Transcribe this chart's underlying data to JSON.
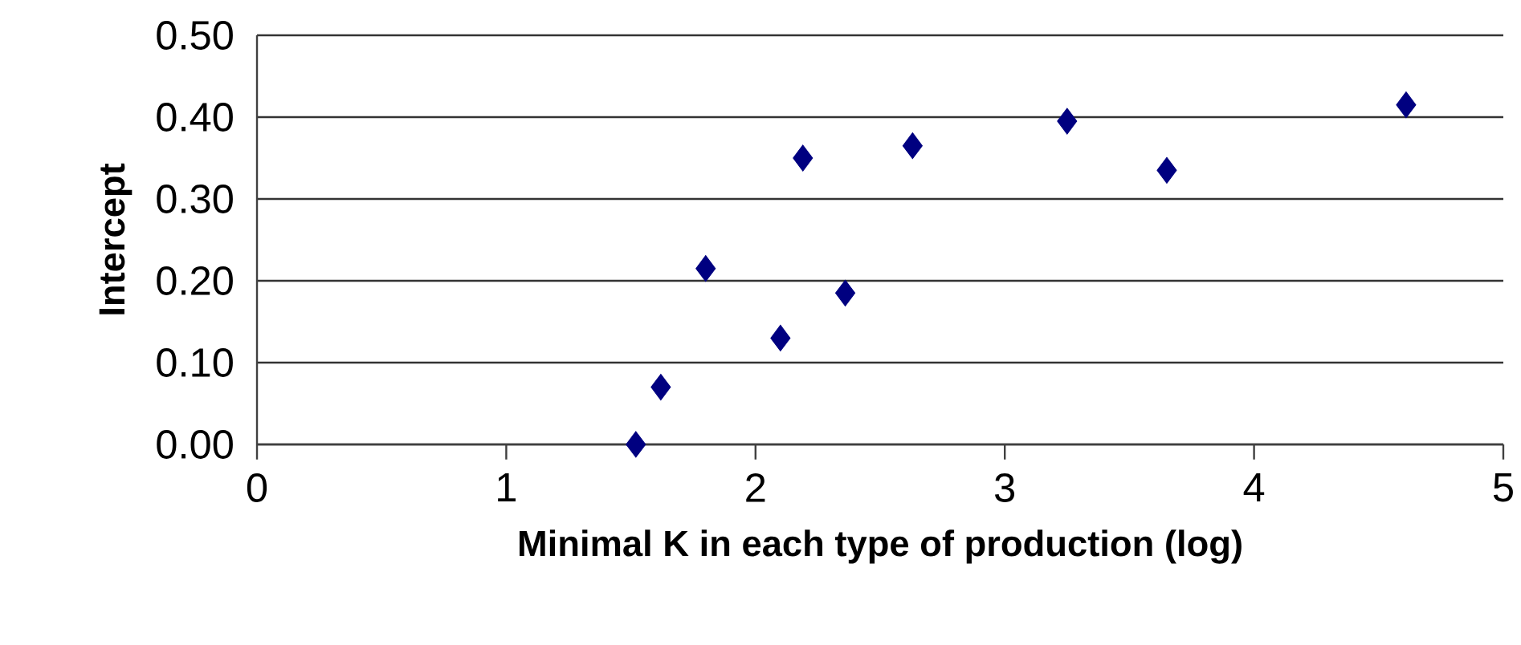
{
  "chart_data": {
    "type": "scatter",
    "xlabel": "Minimal K in each type of production (log)",
    "ylabel": "Intercept",
    "x": [
      1.52,
      1.62,
      1.8,
      2.1,
      2.19,
      2.36,
      2.63,
      3.25,
      3.65,
      4.61
    ],
    "values": [
      0.0,
      0.07,
      0.215,
      0.13,
      0.35,
      0.185,
      0.365,
      0.395,
      0.335,
      0.415
    ],
    "color": "#000080",
    "marker": "diamond",
    "grid": "y",
    "xlim": [
      0,
      5
    ],
    "ylim": [
      0,
      0.5
    ],
    "xticks": [
      0,
      1,
      2,
      3,
      4,
      5
    ],
    "yticks": [
      {
        "value": 0,
        "label": "0.00"
      },
      {
        "value": 0.1,
        "label": "0.10"
      },
      {
        "value": 0.2,
        "label": "0.20"
      },
      {
        "value": 0.3,
        "label": "0.30"
      },
      {
        "value": 0.4,
        "label": "0.40"
      },
      {
        "value": 0.5,
        "label": "0.50"
      }
    ]
  }
}
